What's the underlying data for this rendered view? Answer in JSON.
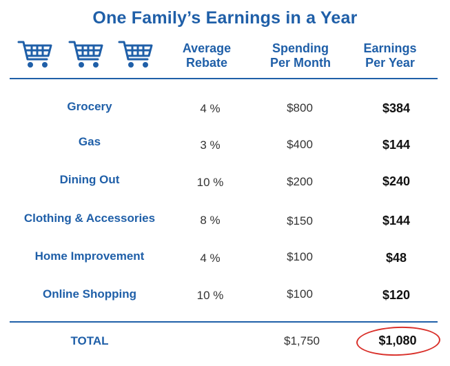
{
  "title": "One Family’s Earnings in a Year",
  "headers": {
    "rebate": "Average\nRebate",
    "spending": "Spending\nPer Month",
    "earnings": "Earnings\nPer Year"
  },
  "icons": [
    "shopping-cart-icon",
    "shopping-cart-icon",
    "shopping-cart-icon"
  ],
  "colors": {
    "accent": "#1f5fa8",
    "highlight": "#d9302a"
  },
  "rows": [
    {
      "category": "Grocery",
      "rebate": "4 %",
      "spending": "$800",
      "earnings": "$384"
    },
    {
      "category": "Gas",
      "rebate": "3 %",
      "spending": "$400",
      "earnings": "$144"
    },
    {
      "category": "Dining Out",
      "rebate": "10 %",
      "spending": "$200",
      "earnings": "$240"
    },
    {
      "category": "Clothing & Accessories",
      "rebate": "8 %",
      "spending": "$150",
      "earnings": "$144"
    },
    {
      "category": "Home Improvement",
      "rebate": "4 %",
      "spending": "$100",
      "earnings": "$48"
    },
    {
      "category": "Online Shopping",
      "rebate": "10 %",
      "spending": "$100",
      "earnings": "$120"
    }
  ],
  "total": {
    "label": "TOTAL",
    "spending": "$1,750",
    "earnings": "$1,080"
  }
}
